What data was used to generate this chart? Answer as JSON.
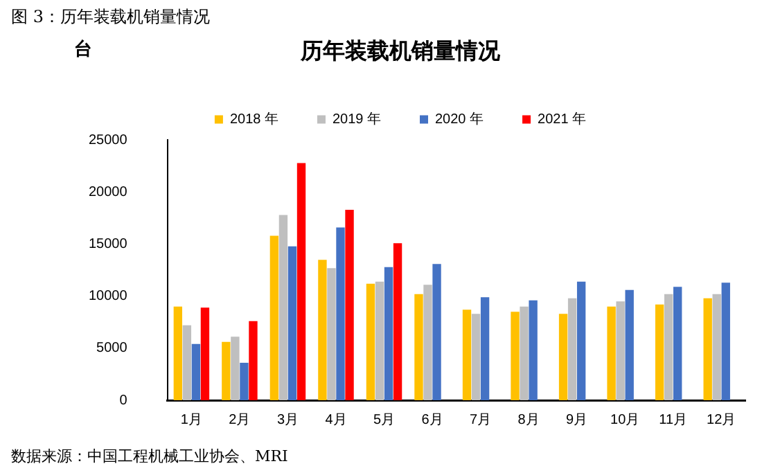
{
  "chart_data": {
    "type": "bar",
    "title": "图 3：历年装载机销量情况",
    "subtitle": "历年装载机销量情况",
    "ylabel": "台",
    "categories": [
      "1月",
      "2月",
      "3月",
      "4月",
      "5月",
      "6月",
      "7月",
      "8月",
      "9月",
      "10月",
      "11月",
      "12月"
    ],
    "series": [
      {
        "name": "2018 年",
        "color": "#ffc000",
        "values": [
          9000,
          5600,
          15800,
          13500,
          11200,
          10200,
          8700,
          8500,
          8300,
          9000,
          9200,
          9800
        ]
      },
      {
        "name": "2019 年",
        "color": "#bfbfbf",
        "values": [
          7200,
          6100,
          17800,
          12700,
          11400,
          11100,
          8300,
          9000,
          9800,
          9500,
          10200,
          10200
        ]
      },
      {
        "name": "2020 年",
        "color": "#4472c4",
        "values": [
          5400,
          3600,
          14800,
          16600,
          12800,
          13100,
          9900,
          9600,
          11400,
          10600,
          10900,
          11300
        ]
      },
      {
        "name": "2021 年",
        "color": "#ff0000",
        "values": [
          8900,
          7600,
          22800,
          18300,
          15100,
          null,
          null,
          null,
          null,
          null,
          null,
          null
        ]
      }
    ],
    "ylim": [
      0,
      25000
    ],
    "yticks": [
      0,
      5000,
      10000,
      15000,
      20000,
      25000
    ],
    "grid": false,
    "legend": "top",
    "annotations": [
      "数据来源：中国工程机械工业协会、MRI"
    ]
  }
}
